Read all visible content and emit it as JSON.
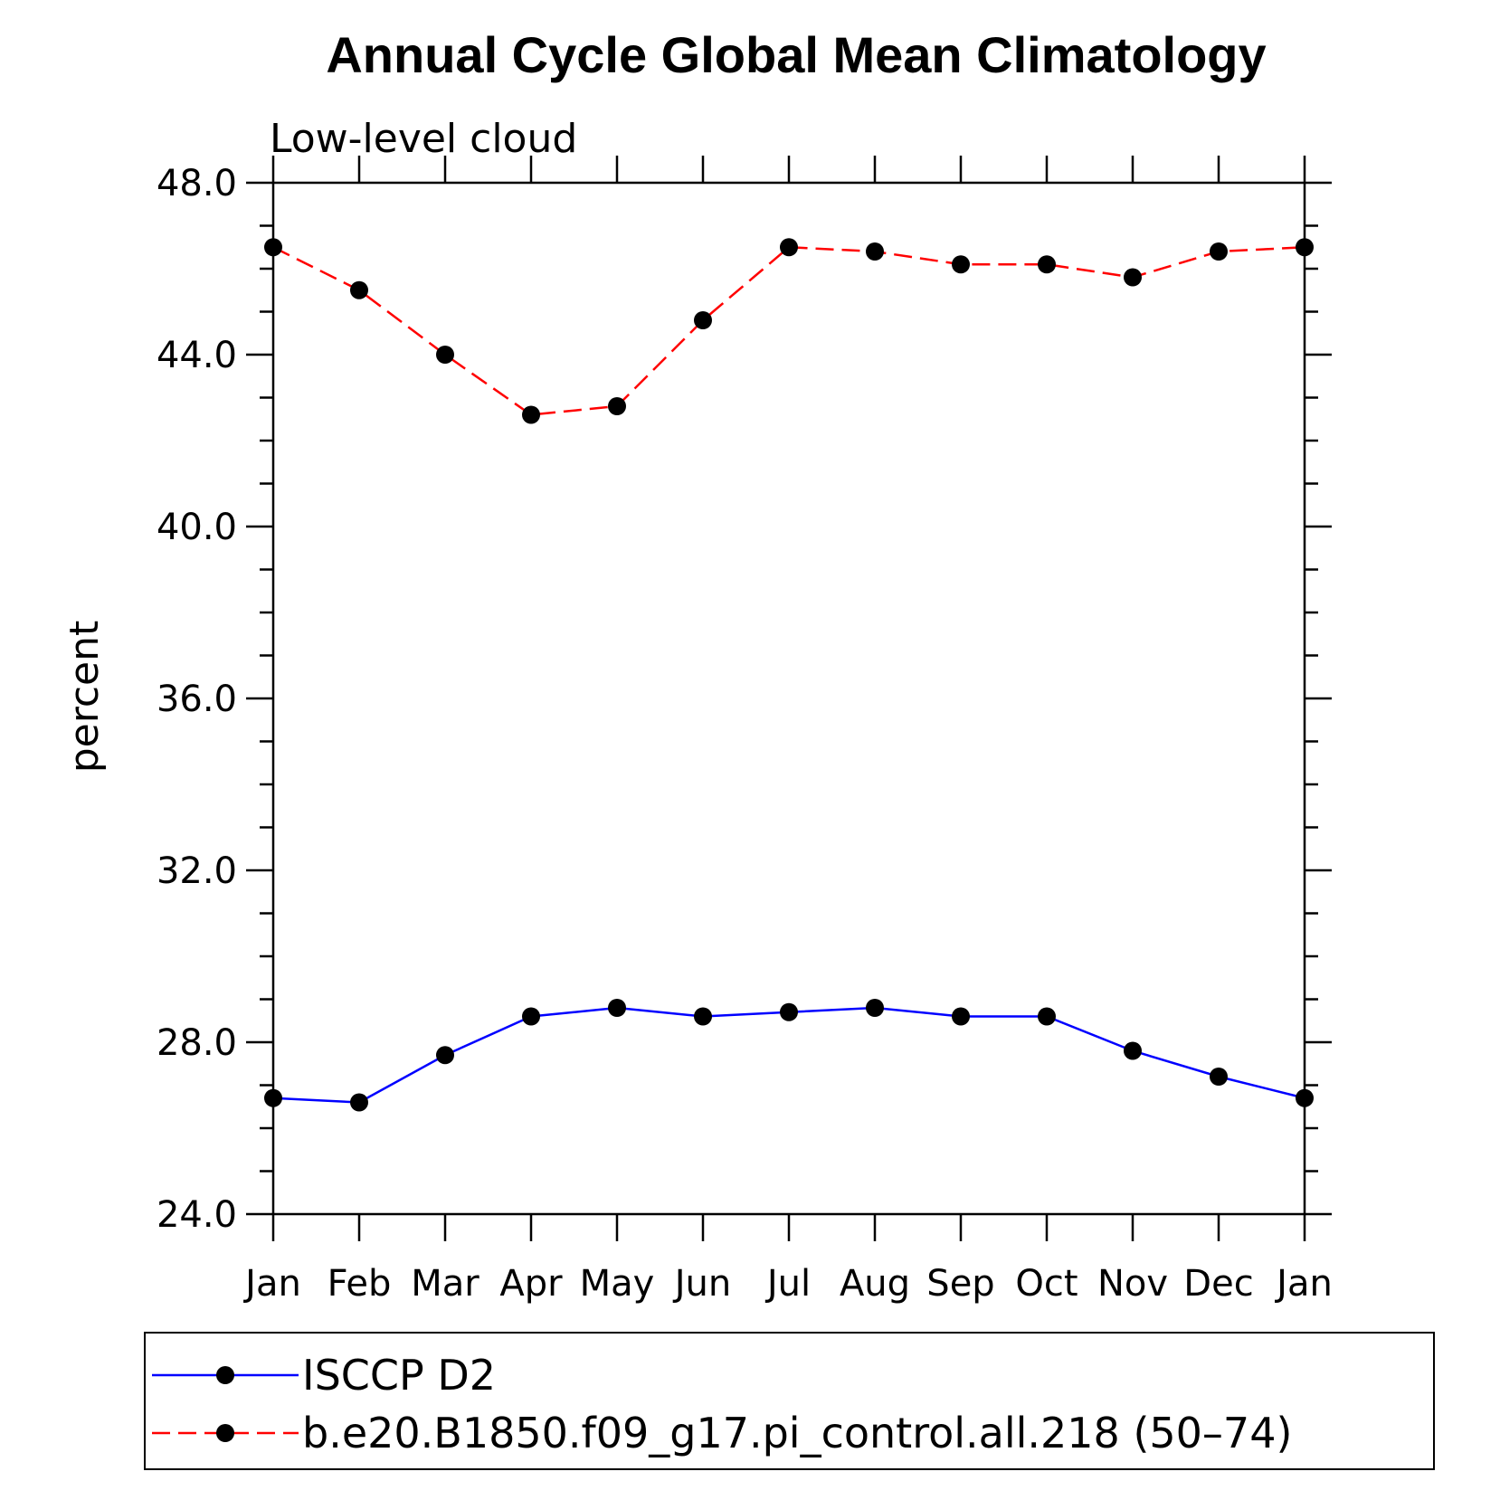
{
  "chart_data": {
    "type": "line",
    "title": "Annual Cycle Global Mean Climatology",
    "subtitle": "Low-level cloud",
    "xlabel": "",
    "ylabel": "percent",
    "categories": [
      "Jan",
      "Feb",
      "Mar",
      "Apr",
      "May",
      "Jun",
      "Jul",
      "Aug",
      "Sep",
      "Oct",
      "Nov",
      "Dec",
      "Jan"
    ],
    "ylim": [
      24.0,
      48.0
    ],
    "yticks": [
      "24.0",
      "28.0",
      "32.0",
      "36.0",
      "40.0",
      "44.0",
      "48.0"
    ],
    "grid": false,
    "legend_position": "bottom",
    "series": [
      {
        "name": "ISCCP D2",
        "color": "#0000ff",
        "line_style": "solid",
        "marker": "filled-circle",
        "values": [
          26.7,
          26.6,
          27.7,
          28.6,
          28.8,
          28.6,
          28.7,
          28.8,
          28.6,
          28.6,
          27.8,
          27.2,
          26.7
        ]
      },
      {
        "name": "b.e20.B1850.f09_g17.pi_control.all.218 (50–74)",
        "color": "#ff0000",
        "line_style": "dashed",
        "marker": "filled-circle",
        "values": [
          46.5,
          45.5,
          44.0,
          42.6,
          42.8,
          44.8,
          46.5,
          46.4,
          46.1,
          46.1,
          45.8,
          46.4,
          46.5
        ]
      }
    ]
  }
}
